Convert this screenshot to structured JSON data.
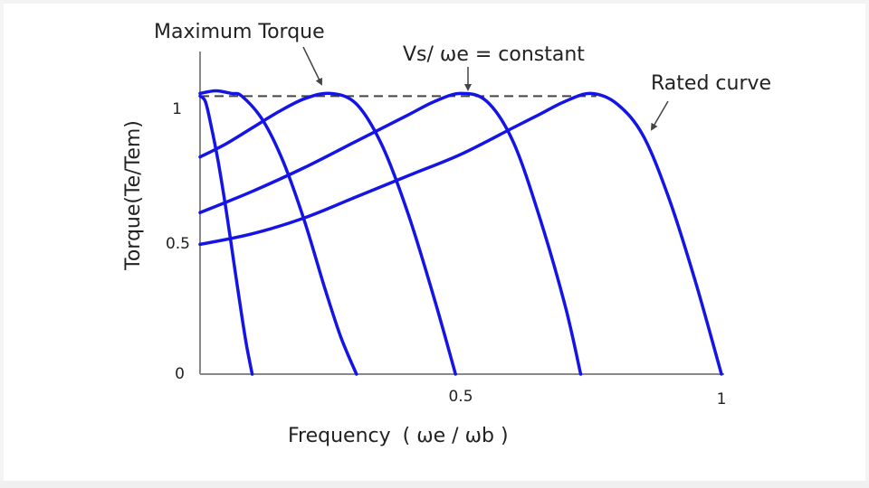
{
  "chart_data": {
    "type": "line",
    "title": "",
    "xlabel_prefix": "Frequency",
    "xlabel_unit": "( ωe / ωb )",
    "ylabel": "Torque(Te/Tem)",
    "xlim": [
      0,
      1
    ],
    "ylim": [
      0,
      1.05
    ],
    "x_ticks": [
      "0.5",
      "1"
    ],
    "y_ticks": [
      "0",
      "0.5",
      "1"
    ],
    "grid": false,
    "line_color": "#1414e6",
    "dashed_level_color": "#444444",
    "max_torque_level": 1.05,
    "annotations": {
      "max_torque": "Maximum Torque",
      "vs_ratio": "Vs/ ωe = constant",
      "rated": "Rated curve"
    },
    "series": [
      {
        "x": [
          0.0,
          0.01,
          0.02,
          0.035,
          0.05,
          0.065,
          0.08,
          0.09,
          0.1
        ],
        "y": [
          1.05,
          1.03,
          0.95,
          0.8,
          0.62,
          0.42,
          0.22,
          0.1,
          0.0
        ]
      },
      {
        "x": [
          0.0,
          0.03,
          0.06,
          0.08,
          0.12,
          0.16,
          0.2,
          0.24,
          0.27,
          0.3
        ],
        "y": [
          1.06,
          1.07,
          1.06,
          1.05,
          0.96,
          0.8,
          0.58,
          0.32,
          0.14,
          0.0
        ]
      },
      {
        "x": [
          0.0,
          0.05,
          0.1,
          0.15,
          0.2,
          0.25,
          0.3,
          0.35,
          0.4,
          0.45,
          0.49
        ],
        "y": [
          0.82,
          0.87,
          0.93,
          0.99,
          1.04,
          1.06,
          1.02,
          0.86,
          0.6,
          0.28,
          0.0
        ]
      },
      {
        "x": [
          0.0,
          0.1,
          0.2,
          0.3,
          0.4,
          0.45,
          0.5,
          0.55,
          0.6,
          0.65,
          0.7,
          0.73
        ],
        "y": [
          0.61,
          0.69,
          0.78,
          0.88,
          0.98,
          1.03,
          1.06,
          1.03,
          0.88,
          0.6,
          0.26,
          0.0
        ]
      },
      {
        "x": [
          0.0,
          0.1,
          0.2,
          0.3,
          0.4,
          0.5,
          0.6,
          0.65,
          0.7,
          0.75,
          0.8,
          0.85,
          0.9,
          0.95,
          1.0
        ],
        "y": [
          0.49,
          0.53,
          0.59,
          0.67,
          0.75,
          0.83,
          0.93,
          0.98,
          1.03,
          1.06,
          1.02,
          0.9,
          0.66,
          0.35,
          0.0
        ]
      }
    ]
  }
}
